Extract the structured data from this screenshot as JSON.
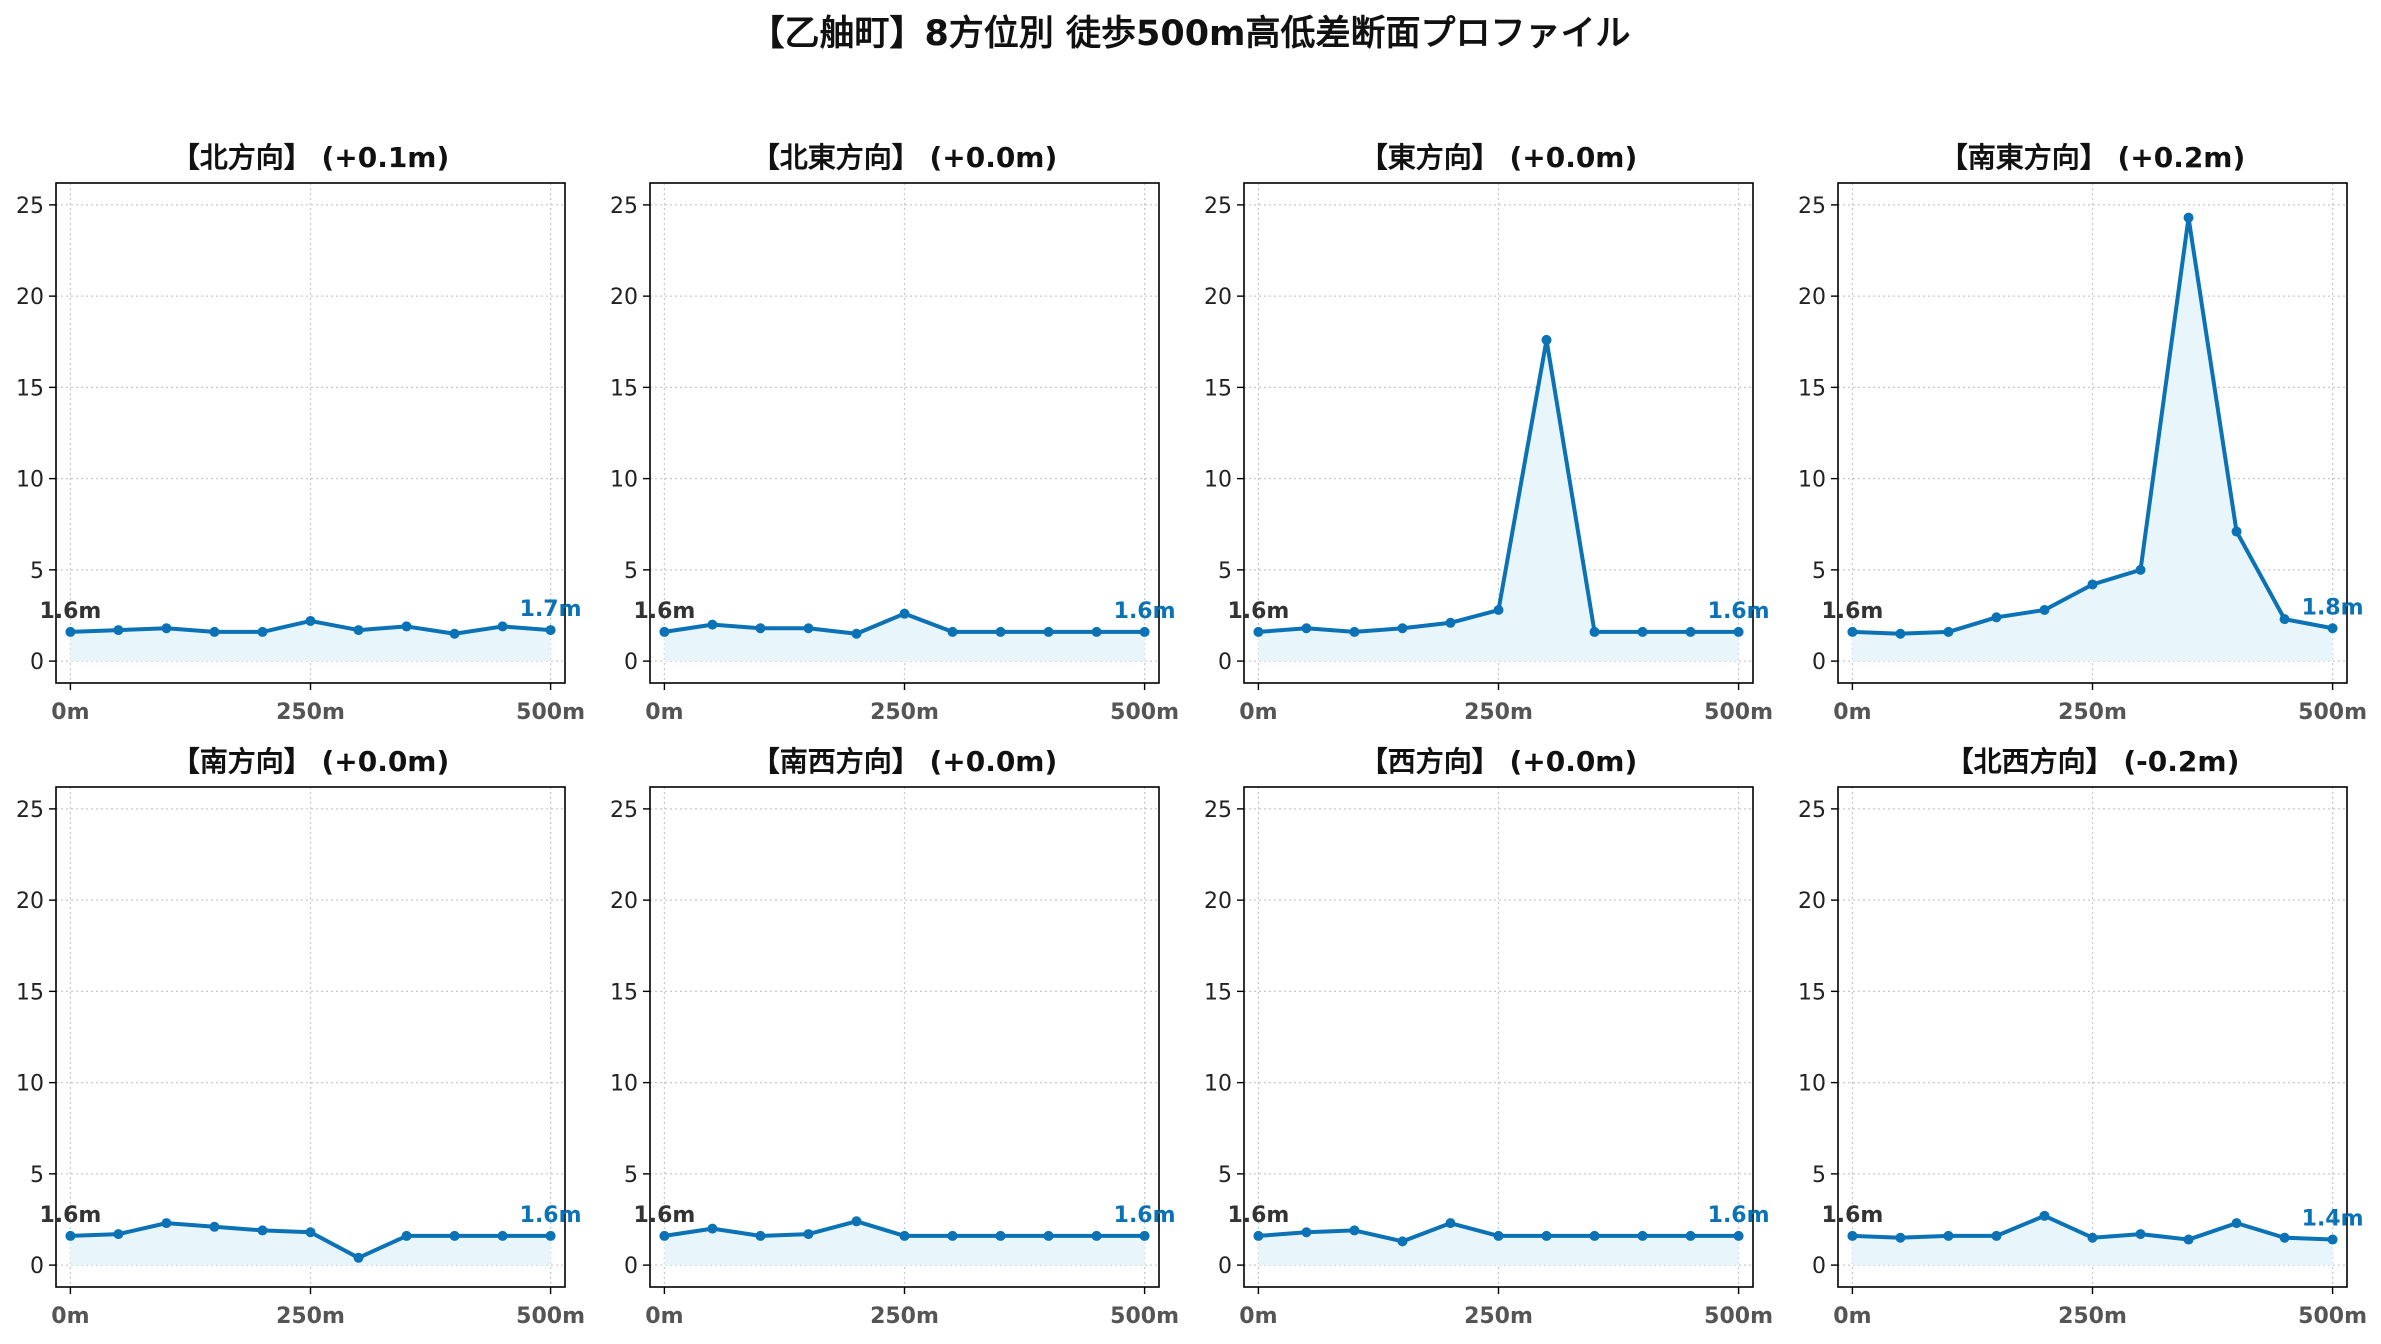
{
  "title": "【乙舳町】8方位別 徒歩500m高低差断面プロファイル",
  "colors": {
    "line": "#0a72b5",
    "fill": "#e8f5fb",
    "grid": "#c8c8c8",
    "axis": "#000000",
    "start_label": "#333333",
    "end_label": "#0a72b5"
  },
  "chart_data": [
    {
      "type": "line",
      "title": "【北方向】 (+0.1m)",
      "x": [
        0,
        50,
        100,
        150,
        200,
        250,
        300,
        350,
        400,
        450,
        500
      ],
      "series": [
        {
          "values": [
            1.6,
            1.7,
            1.8,
            1.6,
            1.6,
            2.2,
            1.7,
            1.9,
            1.5,
            1.9,
            1.7
          ]
        }
      ],
      "xticks": [
        {
          "value": 0,
          "label": "0m"
        },
        {
          "value": 250,
          "label": "250m"
        },
        {
          "value": 500,
          "label": "500m"
        }
      ],
      "yticks": [
        0,
        5,
        10,
        15,
        20,
        25
      ],
      "xlim": [
        -15,
        515
      ],
      "ylim": [
        -1.2,
        26.2
      ],
      "grid": true,
      "start_label": "1.6m",
      "end_label": "1.7m"
    },
    {
      "type": "line",
      "title": "【北東方向】 (+0.0m)",
      "x": [
        0,
        50,
        100,
        150,
        200,
        250,
        300,
        350,
        400,
        450,
        500
      ],
      "series": [
        {
          "values": [
            1.6,
            2.0,
            1.8,
            1.8,
            1.5,
            2.6,
            1.6,
            1.6,
            1.6,
            1.6,
            1.6
          ]
        }
      ],
      "xticks": [
        {
          "value": 0,
          "label": "0m"
        },
        {
          "value": 250,
          "label": "250m"
        },
        {
          "value": 500,
          "label": "500m"
        }
      ],
      "yticks": [
        0,
        5,
        10,
        15,
        20,
        25
      ],
      "xlim": [
        -15,
        515
      ],
      "ylim": [
        -1.2,
        26.2
      ],
      "grid": true,
      "start_label": "1.6m",
      "end_label": "1.6m"
    },
    {
      "type": "line",
      "title": "【東方向】 (+0.0m)",
      "x": [
        0,
        50,
        100,
        150,
        200,
        250,
        300,
        350,
        400,
        450,
        500
      ],
      "series": [
        {
          "values": [
            1.6,
            1.8,
            1.6,
            1.8,
            2.1,
            2.8,
            17.6,
            1.6,
            1.6,
            1.6,
            1.6
          ]
        }
      ],
      "xticks": [
        {
          "value": 0,
          "label": "0m"
        },
        {
          "value": 250,
          "label": "250m"
        },
        {
          "value": 500,
          "label": "500m"
        }
      ],
      "yticks": [
        0,
        5,
        10,
        15,
        20,
        25
      ],
      "xlim": [
        -15,
        515
      ],
      "ylim": [
        -1.2,
        26.2
      ],
      "grid": true,
      "start_label": "1.6m",
      "end_label": "1.6m"
    },
    {
      "type": "line",
      "title": "【南東方向】 (+0.2m)",
      "x": [
        0,
        50,
        100,
        150,
        200,
        250,
        300,
        350,
        400,
        450,
        500
      ],
      "series": [
        {
          "values": [
            1.6,
            1.5,
            1.6,
            2.4,
            2.8,
            4.2,
            5.0,
            24.3,
            7.1,
            2.3,
            1.8
          ]
        }
      ],
      "xticks": [
        {
          "value": 0,
          "label": "0m"
        },
        {
          "value": 250,
          "label": "250m"
        },
        {
          "value": 500,
          "label": "500m"
        }
      ],
      "yticks": [
        0,
        5,
        10,
        15,
        20,
        25
      ],
      "xlim": [
        -15,
        515
      ],
      "ylim": [
        -1.2,
        26.2
      ],
      "grid": true,
      "start_label": "1.6m",
      "end_label": "1.8m"
    },
    {
      "type": "line",
      "title": "【南方向】 (+0.0m)",
      "x": [
        0,
        50,
        100,
        150,
        200,
        250,
        300,
        350,
        400,
        450,
        500
      ],
      "series": [
        {
          "values": [
            1.6,
            1.7,
            2.3,
            2.1,
            1.9,
            1.8,
            0.4,
            1.6,
            1.6,
            1.6,
            1.6
          ]
        }
      ],
      "xticks": [
        {
          "value": 0,
          "label": "0m"
        },
        {
          "value": 250,
          "label": "250m"
        },
        {
          "value": 500,
          "label": "500m"
        }
      ],
      "yticks": [
        0,
        5,
        10,
        15,
        20,
        25
      ],
      "xlim": [
        -15,
        515
      ],
      "ylim": [
        -1.2,
        26.2
      ],
      "grid": true,
      "start_label": "1.6m",
      "end_label": "1.6m"
    },
    {
      "type": "line",
      "title": "【南西方向】 (+0.0m)",
      "x": [
        0,
        50,
        100,
        150,
        200,
        250,
        300,
        350,
        400,
        450,
        500
      ],
      "series": [
        {
          "values": [
            1.6,
            2.0,
            1.6,
            1.7,
            2.4,
            1.6,
            1.6,
            1.6,
            1.6,
            1.6,
            1.6
          ]
        }
      ],
      "xticks": [
        {
          "value": 0,
          "label": "0m"
        },
        {
          "value": 250,
          "label": "250m"
        },
        {
          "value": 500,
          "label": "500m"
        }
      ],
      "yticks": [
        0,
        5,
        10,
        15,
        20,
        25
      ],
      "xlim": [
        -15,
        515
      ],
      "ylim": [
        -1.2,
        26.2
      ],
      "grid": true,
      "start_label": "1.6m",
      "end_label": "1.6m"
    },
    {
      "type": "line",
      "title": "【西方向】 (+0.0m)",
      "x": [
        0,
        50,
        100,
        150,
        200,
        250,
        300,
        350,
        400,
        450,
        500
      ],
      "series": [
        {
          "values": [
            1.6,
            1.8,
            1.9,
            1.3,
            2.3,
            1.6,
            1.6,
            1.6,
            1.6,
            1.6,
            1.6
          ]
        }
      ],
      "xticks": [
        {
          "value": 0,
          "label": "0m"
        },
        {
          "value": 250,
          "label": "250m"
        },
        {
          "value": 500,
          "label": "500m"
        }
      ],
      "yticks": [
        0,
        5,
        10,
        15,
        20,
        25
      ],
      "xlim": [
        -15,
        515
      ],
      "ylim": [
        -1.2,
        26.2
      ],
      "grid": true,
      "start_label": "1.6m",
      "end_label": "1.6m"
    },
    {
      "type": "line",
      "title": "【北西方向】 (-0.2m)",
      "x": [
        0,
        50,
        100,
        150,
        200,
        250,
        300,
        350,
        400,
        450,
        500
      ],
      "series": [
        {
          "values": [
            1.6,
            1.5,
            1.6,
            1.6,
            2.7,
            1.5,
            1.7,
            1.4,
            2.3,
            1.5,
            1.4
          ]
        }
      ],
      "xticks": [
        {
          "value": 0,
          "label": "0m"
        },
        {
          "value": 250,
          "label": "250m"
        },
        {
          "value": 500,
          "label": "500m"
        }
      ],
      "yticks": [
        0,
        5,
        10,
        15,
        20,
        25
      ],
      "xlim": [
        -15,
        515
      ],
      "ylim": [
        -1.2,
        26.2
      ],
      "grid": true,
      "start_label": "1.6m",
      "end_label": "1.4m"
    }
  ]
}
